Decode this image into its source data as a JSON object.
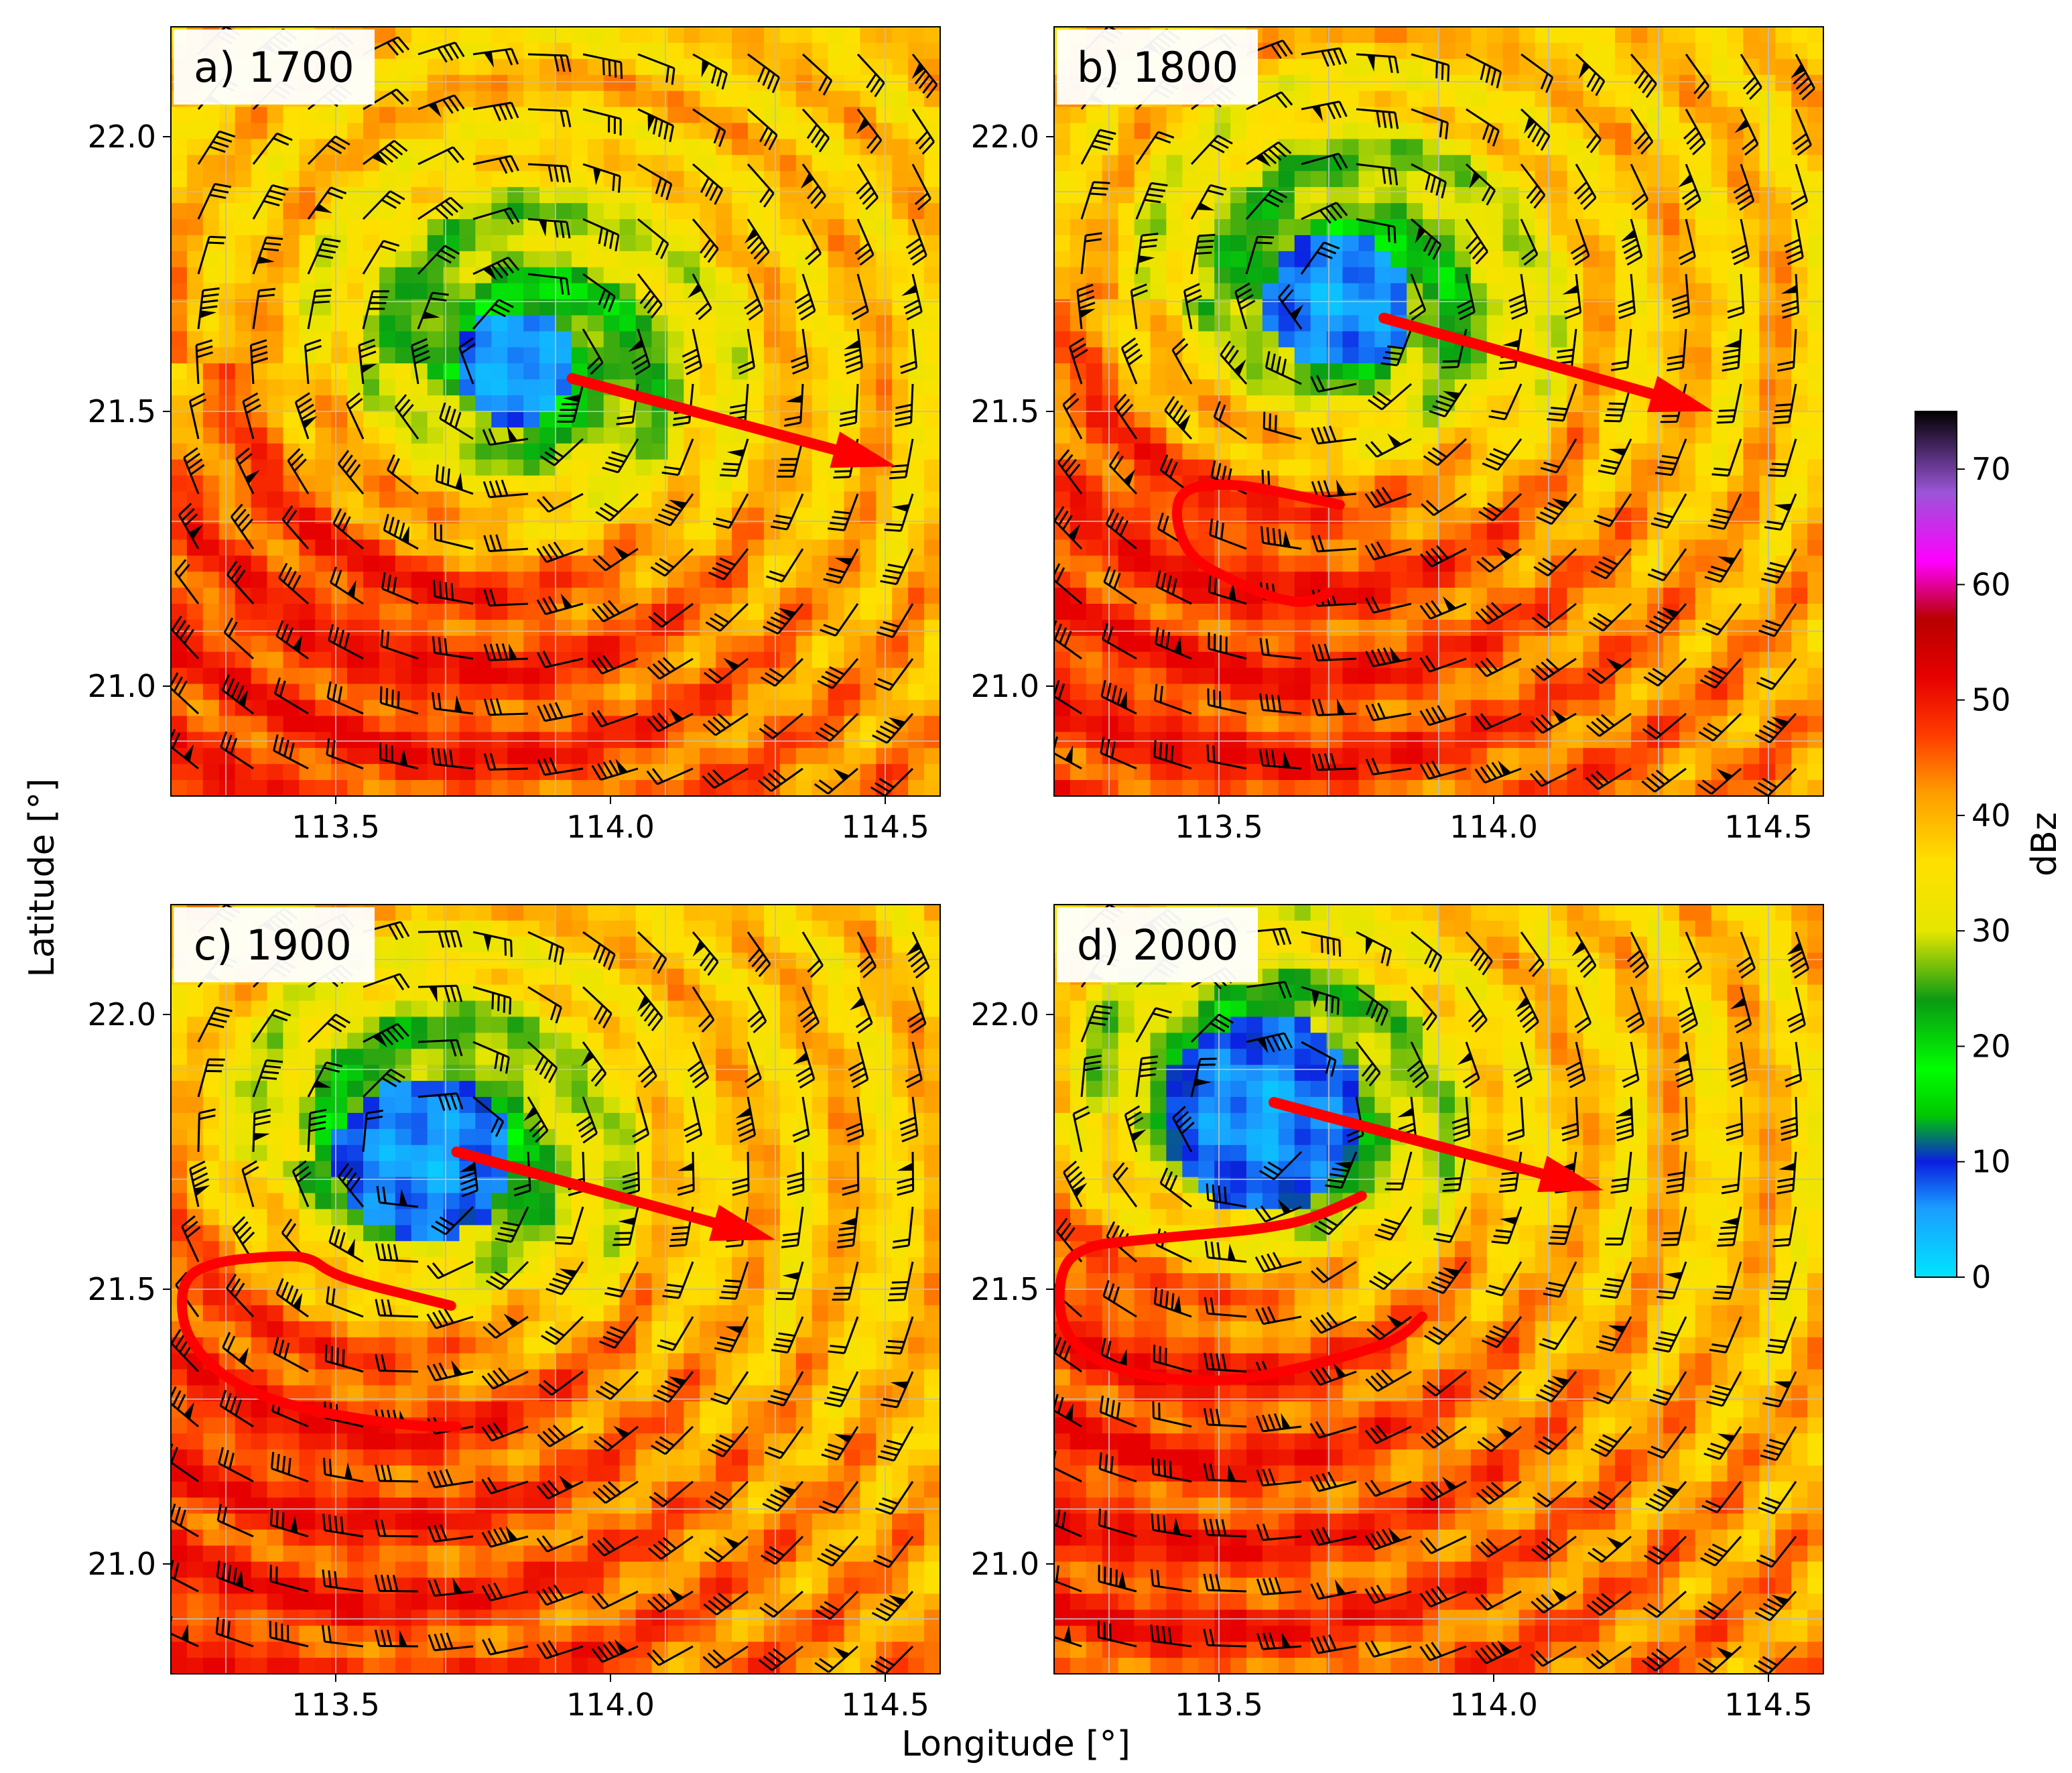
{
  "figure": {
    "xlabel": "Longitude [°]",
    "ylabel": "Latitude [°]",
    "colorbar": {
      "label": "dBz",
      "ticks": [
        "0",
        "10",
        "20",
        "30",
        "40",
        "50",
        "60",
        "70"
      ],
      "range": [
        0,
        75
      ],
      "stops": [
        {
          "v": 0,
          "c": "#00e5ff"
        },
        {
          "v": 6,
          "c": "#1a9cff"
        },
        {
          "v": 10,
          "c": "#0a1fe0"
        },
        {
          "v": 14,
          "c": "#00c800"
        },
        {
          "v": 18,
          "c": "#00ff00"
        },
        {
          "v": 24,
          "c": "#0b9a14"
        },
        {
          "v": 30,
          "c": "#e6e600"
        },
        {
          "v": 36,
          "c": "#ffe000"
        },
        {
          "v": 42,
          "c": "#ff9c00"
        },
        {
          "v": 47,
          "c": "#ff3b00"
        },
        {
          "v": 52,
          "c": "#e60000"
        },
        {
          "v": 57,
          "c": "#b80000"
        },
        {
          "v": 62,
          "c": "#ff00ff"
        },
        {
          "v": 68,
          "c": "#9a55d8"
        },
        {
          "v": 75,
          "c": "#000000"
        }
      ]
    },
    "colors": {
      "arrow": "#ff0000",
      "barb": "#000000",
      "grid": "#bdbdbd"
    }
  },
  "chart_data": [
    {
      "type": "heatmap",
      "label": "a) 1700",
      "xlim": [
        113.2,
        114.6
      ],
      "ylim": [
        20.8,
        22.2
      ],
      "xticks": [
        "113.5",
        "114.0",
        "114.5"
      ],
      "yticks": [
        "21.0",
        "21.5",
        "22.0"
      ],
      "center": [
        113.83,
        21.58
      ],
      "arrow": {
        "from": [
          113.93,
          21.56
        ],
        "to": [
          114.52,
          21.4
        ]
      },
      "curve": []
    },
    {
      "type": "heatmap",
      "label": "b) 1800",
      "xlim": [
        113.2,
        114.6
      ],
      "ylim": [
        20.8,
        22.2
      ],
      "xticks": [
        "113.5",
        "114.0",
        "114.5"
      ],
      "yticks": [
        "21.0",
        "21.5",
        "22.0"
      ],
      "center": [
        113.72,
        21.7
      ],
      "arrow": {
        "from": [
          113.8,
          21.67
        ],
        "to": [
          114.4,
          21.5
        ]
      },
      "curve": [
        [
          113.72,
          21.33
        ],
        [
          113.63,
          21.35
        ],
        [
          113.52,
          21.37
        ],
        [
          113.43,
          21.36
        ],
        [
          113.42,
          21.3
        ],
        [
          113.45,
          21.23
        ],
        [
          113.53,
          21.19
        ],
        [
          113.6,
          21.16
        ],
        [
          113.66,
          21.15
        ],
        [
          113.7,
          21.17
        ]
      ]
    },
    {
      "type": "heatmap",
      "label": "c) 1900",
      "xlim": [
        113.2,
        114.6
      ],
      "ylim": [
        20.8,
        22.2
      ],
      "xticks": [
        "113.5",
        "114.0",
        "114.5"
      ],
      "yticks": [
        "21.0",
        "21.5",
        "22.0"
      ],
      "center": [
        113.66,
        21.74
      ],
      "arrow": {
        "from": [
          113.72,
          21.75
        ],
        "to": [
          114.3,
          21.59
        ]
      },
      "curve": [
        [
          113.71,
          21.47
        ],
        [
          113.63,
          21.49
        ],
        [
          113.55,
          21.51
        ],
        [
          113.49,
          21.53
        ],
        [
          113.45,
          21.56
        ],
        [
          113.38,
          21.56
        ],
        [
          113.28,
          21.55
        ],
        [
          113.22,
          21.52
        ],
        [
          113.22,
          21.43
        ],
        [
          113.27,
          21.36
        ],
        [
          113.35,
          21.31
        ],
        [
          113.45,
          21.28
        ],
        [
          113.57,
          21.26
        ],
        [
          113.66,
          21.25
        ],
        [
          113.72,
          21.25
        ]
      ]
    },
    {
      "type": "heatmap",
      "label": "d) 2000",
      "xlim": [
        113.2,
        114.6
      ],
      "ylim": [
        20.8,
        22.2
      ],
      "xticks": [
        "113.5",
        "114.0",
        "114.5"
      ],
      "yticks": [
        "21.0",
        "21.5",
        "22.0"
      ],
      "center": [
        113.58,
        21.82
      ],
      "arrow": {
        "from": [
          113.6,
          21.84
        ],
        "to": [
          114.2,
          21.68
        ]
      },
      "curve": [
        [
          113.76,
          21.67
        ],
        [
          113.68,
          21.63
        ],
        [
          113.58,
          21.61
        ],
        [
          113.47,
          21.6
        ],
        [
          113.36,
          21.59
        ],
        [
          113.26,
          21.58
        ],
        [
          113.21,
          21.54
        ],
        [
          113.21,
          21.43
        ],
        [
          113.27,
          21.37
        ],
        [
          113.37,
          21.34
        ],
        [
          113.5,
          21.33
        ],
        [
          113.62,
          21.35
        ],
        [
          113.74,
          21.38
        ],
        [
          113.83,
          21.41
        ],
        [
          113.87,
          21.45
        ]
      ]
    }
  ]
}
